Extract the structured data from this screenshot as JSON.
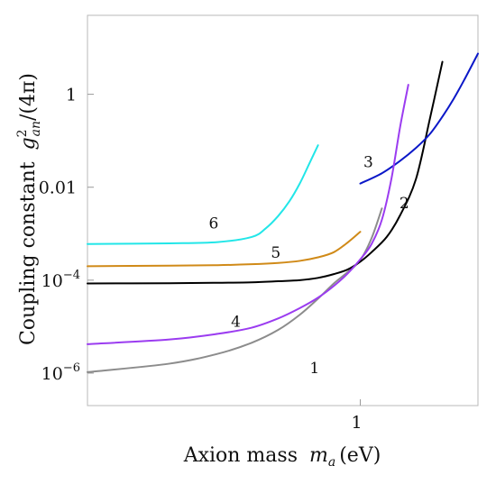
{
  "chart_data": {
    "type": "line",
    "xlabel": "Axion mass",
    "xlabel_symbol": "m",
    "xlabel_subscript": "a",
    "xlabel_unit": "(eV)",
    "ylabel": "Coupling constant",
    "ylabel_symbol": "g",
    "ylabel_subscript": "an",
    "ylabel_superscript": "2",
    "ylabel_suffix": "/(4π)",
    "x_scale": "log",
    "y_scale": "log",
    "xlim": [
      0.1,
      2.7
    ],
    "ylim": [
      2e-07,
      50
    ],
    "x_ticks": [
      {
        "value": 1,
        "label": "1"
      }
    ],
    "y_ticks": [
      {
        "value": 1e-06,
        "base": "10",
        "exp": "−6"
      },
      {
        "value": 0.0001,
        "base": "10",
        "exp": "−4"
      },
      {
        "value": 0.01,
        "label": "0.01"
      },
      {
        "value": 1,
        "label": "1"
      }
    ],
    "grid": false,
    "legend": "none",
    "series": [
      {
        "name": "1",
        "color": "#8c8c8c",
        "x": [
          0.1,
          0.2,
          0.3,
          0.4,
          0.5,
          0.6,
          0.7,
          0.8,
          0.9,
          1.0,
          1.1,
          1.2
        ],
        "y": [
          1.05e-06,
          1.6e-06,
          2.6e-06,
          4.5e-06,
          8.5e-06,
          1.8e-05,
          4e-05,
          8.5e-05,
          0.00015,
          0.00027,
          0.0008,
          0.0035
        ],
        "label_at": [
          0.68,
          1e-06
        ]
      },
      {
        "name": "2",
        "color": "#000000",
        "x": [
          0.1,
          0.2,
          0.3,
          0.4,
          0.5,
          0.6,
          0.7,
          0.8,
          0.9,
          1.0,
          1.1,
          1.25,
          1.4,
          1.6,
          1.8,
          2.0
        ],
        "y": [
          8.5e-05,
          8.6e-05,
          8.8e-05,
          9e-05,
          9.5e-05,
          0.0001,
          0.000112,
          0.000135,
          0.00017,
          0.00025,
          0.0004,
          0.00085,
          0.0025,
          0.015,
          0.3,
          5.0
        ],
        "label_at": [
          1.45,
          0.0035
        ]
      },
      {
        "name": "3",
        "color": "#0b18c8",
        "x": [
          1.0,
          1.2,
          1.4,
          1.6,
          1.8,
          2.0,
          2.2,
          2.4,
          2.7
        ],
        "y": [
          0.012,
          0.02,
          0.037,
          0.07,
          0.14,
          0.33,
          0.8,
          2.0,
          7.5
        ],
        "label_at": [
          1.07,
          0.027
        ]
      },
      {
        "name": "4",
        "color": "#9b3cf0",
        "x": [
          0.1,
          0.2,
          0.3,
          0.4,
          0.5,
          0.6,
          0.7,
          0.8,
          0.9,
          1.0,
          1.1,
          1.2,
          1.3,
          1.4,
          1.5
        ],
        "y": [
          4.2e-06,
          5.3e-06,
          7e-06,
          9.5e-06,
          1.5e-05,
          2.5e-05,
          4.2e-05,
          7.5e-05,
          0.00014,
          0.00028,
          0.0006,
          0.002,
          0.015,
          0.2,
          1.6
        ],
        "label_at": [
          0.35,
          1e-05
        ]
      },
      {
        "name": "5",
        "color": "#d08a18",
        "x": [
          0.1,
          0.2,
          0.3,
          0.4,
          0.5,
          0.6,
          0.7,
          0.8,
          0.9,
          1.0
        ],
        "y": [
          0.0002,
          0.000205,
          0.00021,
          0.00022,
          0.000235,
          0.00026,
          0.00031,
          0.0004,
          0.00065,
          0.0011
        ],
        "label_at": [
          0.49,
          0.0003
        ]
      },
      {
        "name": "6",
        "color": "#22e6e8",
        "x": [
          0.1,
          0.2,
          0.3,
          0.4,
          0.45,
          0.5,
          0.55,
          0.6,
          0.65,
          0.7
        ],
        "y": [
          0.0006,
          0.00062,
          0.00066,
          0.00085,
          0.0013,
          0.0024,
          0.005,
          0.012,
          0.032,
          0.08
        ],
        "label_at": [
          0.29,
          0.0013
        ]
      }
    ]
  }
}
